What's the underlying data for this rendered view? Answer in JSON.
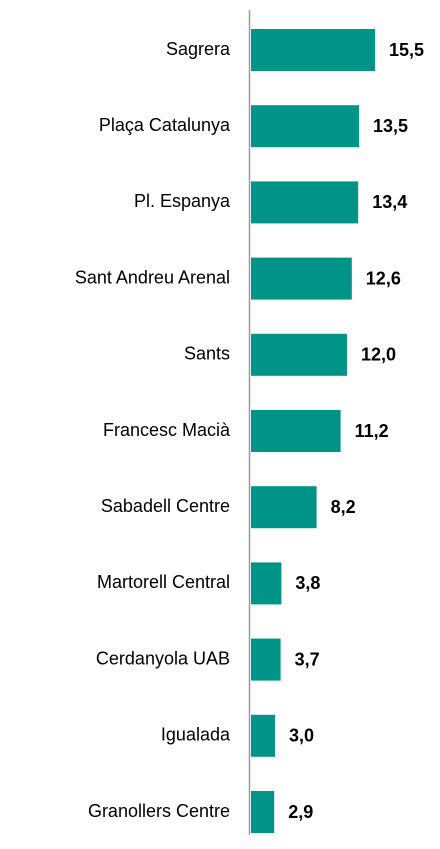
{
  "chart_data": {
    "type": "bar",
    "orientation": "horizontal",
    "categories": [
      "Sagrera",
      "Plaça Catalunya",
      "Pl. Espanya",
      "Sant Andreu Arenal",
      "Sants",
      "Francesc Macià",
      "Sabadell Centre",
      "Martorell Central",
      "Cerdanyola UAB",
      "Igualada",
      "Granollers Centre"
    ],
    "values": [
      15.5,
      13.5,
      13.4,
      12.6,
      12.0,
      11.2,
      8.2,
      3.8,
      3.7,
      3.0,
      2.9
    ],
    "value_labels": [
      "15,5",
      "13,5",
      "13,4",
      "12,6",
      "12,0",
      "11,2",
      "8,2",
      "3,8",
      "3,7",
      "3,0",
      "2,9"
    ],
    "color": "#009488"
  }
}
